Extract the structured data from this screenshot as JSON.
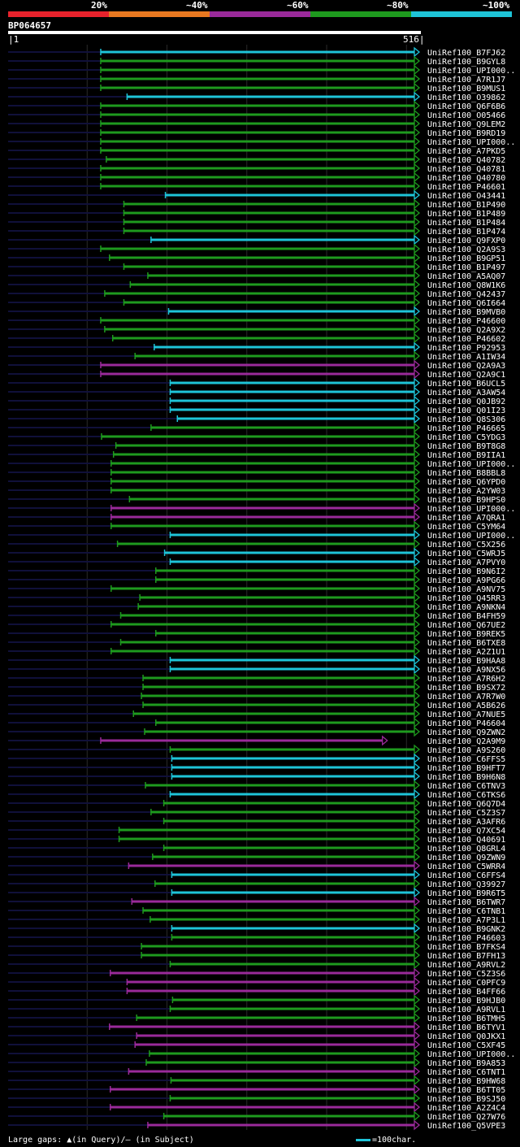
{
  "colors": {
    "background": "#000000",
    "underline": "#10103a",
    "grid": "#2a2a2a",
    "identity_20": "#e8222c",
    "identity_40": "#e87820",
    "identity_60": "#9a2a9a",
    "identity_80": "#1e9a1e",
    "identity_100": "#1ec4d8",
    "label": "#ffffff"
  },
  "chart_data": {
    "type": "alignment",
    "query": "BP064657",
    "query_start": 1,
    "query_end": 516,
    "identity_legend": [
      {
        "label": "20%",
        "color": "#e8222c"
      },
      {
        "label": "~40%",
        "color": "#e87820"
      },
      {
        "label": "~60%",
        "color": "#9a2a9a"
      },
      {
        "label": "~80%",
        "color": "#1e9a1e"
      },
      {
        "label": "~100%",
        "color": "#1ec4d8"
      }
    ],
    "hits": [
      {
        "name": "UniRef100_B7FJ62",
        "start": 117,
        "end": 516,
        "identity": "~100%"
      },
      {
        "name": "UniRef100_B9GYL8",
        "start": 117,
        "end": 516,
        "identity": "~80%"
      },
      {
        "name": "UniRef100_UPI000..",
        "start": 117,
        "end": 516,
        "identity": "~80%"
      },
      {
        "name": "UniRef100_A7R1J7",
        "start": 117,
        "end": 516,
        "identity": "~80%"
      },
      {
        "name": "UniRef100_B9MUS1",
        "start": 117,
        "end": 516,
        "identity": "~80%"
      },
      {
        "name": "UniRef100_O39862",
        "start": 150,
        "end": 516,
        "identity": "~100%"
      },
      {
        "name": "UniRef100_Q6F6B6",
        "start": 117,
        "end": 516,
        "identity": "~80%"
      },
      {
        "name": "UniRef100_O05466",
        "start": 117,
        "end": 516,
        "identity": "~80%"
      },
      {
        "name": "UniRef100_Q9LEM2",
        "start": 117,
        "end": 516,
        "identity": "~80%"
      },
      {
        "name": "UniRef100_B9RD19",
        "start": 117,
        "end": 516,
        "identity": "~80%"
      },
      {
        "name": "UniRef100_UPI000..",
        "start": 117,
        "end": 516,
        "identity": "~80%"
      },
      {
        "name": "UniRef100_A7PKD5",
        "start": 117,
        "end": 516,
        "identity": "~80%"
      },
      {
        "name": "UniRef100_Q40782",
        "start": 124,
        "end": 516,
        "identity": "~80%"
      },
      {
        "name": "UniRef100_Q40781",
        "start": 117,
        "end": 516,
        "identity": "~80%"
      },
      {
        "name": "UniRef100_Q40780",
        "start": 117,
        "end": 516,
        "identity": "~80%"
      },
      {
        "name": "UniRef100_P46601",
        "start": 117,
        "end": 516,
        "identity": "~80%"
      },
      {
        "name": "UniRef100_O43441",
        "start": 198,
        "end": 516,
        "identity": "~100%"
      },
      {
        "name": "UniRef100_B1P490",
        "start": 146,
        "end": 516,
        "identity": "~80%"
      },
      {
        "name": "UniRef100_B1P489",
        "start": 146,
        "end": 516,
        "identity": "~80%"
      },
      {
        "name": "UniRef100_B1P484",
        "start": 146,
        "end": 516,
        "identity": "~80%"
      },
      {
        "name": "UniRef100_B1P474",
        "start": 146,
        "end": 516,
        "identity": "~80%"
      },
      {
        "name": "UniRef100_Q9FXP0",
        "start": 180,
        "end": 516,
        "identity": "~100%"
      },
      {
        "name": "UniRef100_Q2A9S3",
        "start": 117,
        "end": 516,
        "identity": "~80%"
      },
      {
        "name": "UniRef100_B9GP51",
        "start": 128,
        "end": 516,
        "identity": "~80%"
      },
      {
        "name": "UniRef100_B1P497",
        "start": 146,
        "end": 516,
        "identity": "~80%"
      },
      {
        "name": "UniRef100_A5AQ07",
        "start": 176,
        "end": 516,
        "identity": "~80%"
      },
      {
        "name": "UniRef100_Q8W1K6",
        "start": 154,
        "end": 516,
        "identity": "~80%"
      },
      {
        "name": "UniRef100_Q42437",
        "start": 122,
        "end": 516,
        "identity": "~80%"
      },
      {
        "name": "UniRef100_Q6I664",
        "start": 146,
        "end": 516,
        "identity": "~80%"
      },
      {
        "name": "UniRef100_B9MVB0",
        "start": 202,
        "end": 516,
        "identity": "~100%"
      },
      {
        "name": "UniRef100_P46600",
        "start": 117,
        "end": 516,
        "identity": "~80%"
      },
      {
        "name": "UniRef100_Q2A9X2",
        "start": 122,
        "end": 516,
        "identity": "~80%"
      },
      {
        "name": "UniRef100_P46602",
        "start": 132,
        "end": 516,
        "identity": "~80%"
      },
      {
        "name": "UniRef100_P92953",
        "start": 184,
        "end": 516,
        "identity": "~100%"
      },
      {
        "name": "UniRef100_A1IW34",
        "start": 160,
        "end": 516,
        "identity": "~80%"
      },
      {
        "name": "UniRef100_Q2A9A3",
        "start": 117,
        "end": 516,
        "identity": "~60%"
      },
      {
        "name": "UniRef100_Q2A9C1",
        "start": 117,
        "end": 516,
        "identity": "~60%"
      },
      {
        "name": "UniRef100_B6UCL5",
        "start": 204,
        "end": 516,
        "identity": "~100%"
      },
      {
        "name": "UniRef100_A3AW54",
        "start": 204,
        "end": 516,
        "identity": "~100%"
      },
      {
        "name": "UniRef100_Q0JB92",
        "start": 204,
        "end": 516,
        "identity": "~100%"
      },
      {
        "name": "UniRef100_Q01I23",
        "start": 204,
        "end": 516,
        "identity": "~100%"
      },
      {
        "name": "UniRef100_Q8S306",
        "start": 213,
        "end": 516,
        "identity": "~100%"
      },
      {
        "name": "UniRef100_P46665",
        "start": 180,
        "end": 516,
        "identity": "~80%"
      },
      {
        "name": "UniRef100_C5YDG3",
        "start": 118,
        "end": 516,
        "identity": "~80%"
      },
      {
        "name": "UniRef100_B9T8G8",
        "start": 136,
        "end": 516,
        "identity": "~80%"
      },
      {
        "name": "UniRef100_B9IIA1",
        "start": 133,
        "end": 516,
        "identity": "~80%"
      },
      {
        "name": "UniRef100_UPI000..",
        "start": 130,
        "end": 516,
        "identity": "~80%"
      },
      {
        "name": "UniRef100_B8BBL8",
        "start": 130,
        "end": 516,
        "identity": "~80%"
      },
      {
        "name": "UniRef100_Q6YPD0",
        "start": 130,
        "end": 516,
        "identity": "~80%"
      },
      {
        "name": "UniRef100_A2YW03",
        "start": 130,
        "end": 516,
        "identity": "~80%"
      },
      {
        "name": "UniRef100_B9HPS0",
        "start": 153,
        "end": 516,
        "identity": "~80%"
      },
      {
        "name": "UniRef100_UPI000..",
        "start": 130,
        "end": 516,
        "identity": "~60%"
      },
      {
        "name": "UniRef100_A7QRA1",
        "start": 130,
        "end": 516,
        "identity": "~60%"
      },
      {
        "name": "UniRef100_C5YM64",
        "start": 130,
        "end": 516,
        "identity": "~80%"
      },
      {
        "name": "UniRef100_UPI000..",
        "start": 204,
        "end": 516,
        "identity": "~100%"
      },
      {
        "name": "UniRef100_C5X256",
        "start": 138,
        "end": 516,
        "identity": "~80%"
      },
      {
        "name": "UniRef100_C5WRJ5",
        "start": 197,
        "end": 516,
        "identity": "~100%"
      },
      {
        "name": "UniRef100_A7PVY0",
        "start": 204,
        "end": 516,
        "identity": "~100%"
      },
      {
        "name": "UniRef100_B9N6I2",
        "start": 186,
        "end": 516,
        "identity": "~80%"
      },
      {
        "name": "UniRef100_A9PG66",
        "start": 186,
        "end": 516,
        "identity": "~80%"
      },
      {
        "name": "UniRef100_A9NV75",
        "start": 130,
        "end": 516,
        "identity": "~80%"
      },
      {
        "name": "UniRef100_Q45RR3",
        "start": 166,
        "end": 516,
        "identity": "~80%"
      },
      {
        "name": "UniRef100_A9NKN4",
        "start": 164,
        "end": 516,
        "identity": "~80%"
      },
      {
        "name": "UniRef100_B4FH59",
        "start": 142,
        "end": 516,
        "identity": "~80%"
      },
      {
        "name": "UniRef100_Q67UE2",
        "start": 130,
        "end": 516,
        "identity": "~80%"
      },
      {
        "name": "UniRef100_B9REK5",
        "start": 186,
        "end": 516,
        "identity": "~80%"
      },
      {
        "name": "UniRef100_B6TXE8",
        "start": 142,
        "end": 516,
        "identity": "~80%"
      },
      {
        "name": "UniRef100_A2Z1U1",
        "start": 130,
        "end": 516,
        "identity": "~80%"
      },
      {
        "name": "UniRef100_B9HAA8",
        "start": 204,
        "end": 516,
        "identity": "~100%"
      },
      {
        "name": "UniRef100_A9NX56",
        "start": 204,
        "end": 516,
        "identity": "~100%"
      },
      {
        "name": "UniRef100_A7R6H2",
        "start": 170,
        "end": 516,
        "identity": "~80%"
      },
      {
        "name": "UniRef100_B9SX72",
        "start": 170,
        "end": 516,
        "identity": "~80%"
      },
      {
        "name": "UniRef100_A7R7W0",
        "start": 168,
        "end": 516,
        "identity": "~80%"
      },
      {
        "name": "UniRef100_A5B626",
        "start": 170,
        "end": 516,
        "identity": "~80%"
      },
      {
        "name": "UniRef100_A7NUE5",
        "start": 158,
        "end": 516,
        "identity": "~80%"
      },
      {
        "name": "UniRef100_P46604",
        "start": 186,
        "end": 516,
        "identity": "~80%"
      },
      {
        "name": "UniRef100_Q9ZWN2",
        "start": 172,
        "end": 516,
        "identity": "~80%"
      },
      {
        "name": "UniRef100_Q2A9M9",
        "start": 117,
        "end": 476,
        "identity": "~60%"
      },
      {
        "name": "UniRef100_A9S260",
        "start": 204,
        "end": 516,
        "identity": "~80%"
      },
      {
        "name": "UniRef100_C6FFS5",
        "start": 206,
        "end": 516,
        "identity": "~100%"
      },
      {
        "name": "UniRef100_B9HFT7",
        "start": 206,
        "end": 516,
        "identity": "~100%"
      },
      {
        "name": "UniRef100_B9H6N8",
        "start": 206,
        "end": 516,
        "identity": "~100%"
      },
      {
        "name": "UniRef100_C6TNV3",
        "start": 173,
        "end": 516,
        "identity": "~80%"
      },
      {
        "name": "UniRef100_C6TKS6",
        "start": 204,
        "end": 516,
        "identity": "~100%"
      },
      {
        "name": "UniRef100_Q6Q7D4",
        "start": 196,
        "end": 516,
        "identity": "~80%"
      },
      {
        "name": "UniRef100_C5Z3S7",
        "start": 180,
        "end": 516,
        "identity": "~80%"
      },
      {
        "name": "UniRef100_A3AFR6",
        "start": 196,
        "end": 516,
        "identity": "~80%"
      },
      {
        "name": "UniRef100_Q7XC54",
        "start": 140,
        "end": 516,
        "identity": "~80%"
      },
      {
        "name": "UniRef100_Q40691",
        "start": 140,
        "end": 516,
        "identity": "~80%"
      },
      {
        "name": "UniRef100_Q8GRL4",
        "start": 196,
        "end": 516,
        "identity": "~80%"
      },
      {
        "name": "UniRef100_Q9ZWN9",
        "start": 182,
        "end": 516,
        "identity": "~80%"
      },
      {
        "name": "UniRef100_C5WRR4",
        "start": 152,
        "end": 516,
        "identity": "~60%"
      },
      {
        "name": "UniRef100_C6FFS4",
        "start": 206,
        "end": 516,
        "identity": "~100%"
      },
      {
        "name": "UniRef100_Q39927",
        "start": 185,
        "end": 516,
        "identity": "~80%"
      },
      {
        "name": "UniRef100_B9R6T5",
        "start": 206,
        "end": 516,
        "identity": "~100%"
      },
      {
        "name": "UniRef100_B6TWR7",
        "start": 156,
        "end": 516,
        "identity": "~60%"
      },
      {
        "name": "UniRef100_C6TNB1",
        "start": 170,
        "end": 516,
        "identity": "~80%"
      },
      {
        "name": "UniRef100_A7P3L1",
        "start": 179,
        "end": 516,
        "identity": "~80%"
      },
      {
        "name": "UniRef100_B9GNK2",
        "start": 206,
        "end": 516,
        "identity": "~100%"
      },
      {
        "name": "UniRef100_P46603",
        "start": 206,
        "end": 516,
        "identity": "~80%"
      },
      {
        "name": "UniRef100_B7FKS4",
        "start": 168,
        "end": 516,
        "identity": "~80%"
      },
      {
        "name": "UniRef100_B7FH13",
        "start": 168,
        "end": 516,
        "identity": "~80%"
      },
      {
        "name": "UniRef100_A9RVL2",
        "start": 204,
        "end": 516,
        "identity": "~80%"
      },
      {
        "name": "UniRef100_C5Z3S6",
        "start": 129,
        "end": 516,
        "identity": "~60%"
      },
      {
        "name": "UniRef100_C0PFC9",
        "start": 150,
        "end": 516,
        "identity": "~60%"
      },
      {
        "name": "UniRef100_B4FF66",
        "start": 150,
        "end": 516,
        "identity": "~60%"
      },
      {
        "name": "UniRef100_B9HJB0",
        "start": 207,
        "end": 516,
        "identity": "~80%"
      },
      {
        "name": "UniRef100_A9RVL1",
        "start": 204,
        "end": 516,
        "identity": "~80%"
      },
      {
        "name": "UniRef100_B6TMH5",
        "start": 162,
        "end": 516,
        "identity": "~80%"
      },
      {
        "name": "UniRef100_B6TYV1",
        "start": 128,
        "end": 516,
        "identity": "~60%"
      },
      {
        "name": "UniRef100_Q0JKX1",
        "start": 162,
        "end": 516,
        "identity": "~60%"
      },
      {
        "name": "UniRef100_C5XF45",
        "start": 160,
        "end": 516,
        "identity": "~60%"
      },
      {
        "name": "UniRef100_UPI000..",
        "start": 178,
        "end": 516,
        "identity": "~80%"
      },
      {
        "name": "UniRef100_B9A853",
        "start": 174,
        "end": 516,
        "identity": "~80%"
      },
      {
        "name": "UniRef100_C6TNT1",
        "start": 152,
        "end": 516,
        "identity": "~60%"
      },
      {
        "name": "UniRef100_B9HW68",
        "start": 205,
        "end": 516,
        "identity": "~80%"
      },
      {
        "name": "UniRef100_B6TT05",
        "start": 129,
        "end": 516,
        "identity": "~60%"
      },
      {
        "name": "UniRef100_B9SJ50",
        "start": 204,
        "end": 516,
        "identity": "~80%"
      },
      {
        "name": "UniRef100_A2Z4C4",
        "start": 129,
        "end": 516,
        "identity": "~60%"
      },
      {
        "name": "UniRef100_Q27W76",
        "start": 196,
        "end": 516,
        "identity": "~80%"
      },
      {
        "name": "UniRef100_Q5VPE3",
        "start": 176,
        "end": 516,
        "identity": "~60%"
      }
    ]
  },
  "footer": {
    "gaps_text": "Large gaps: ▲(in Query)/– (in Subject)",
    "scale_text": "=100char."
  }
}
